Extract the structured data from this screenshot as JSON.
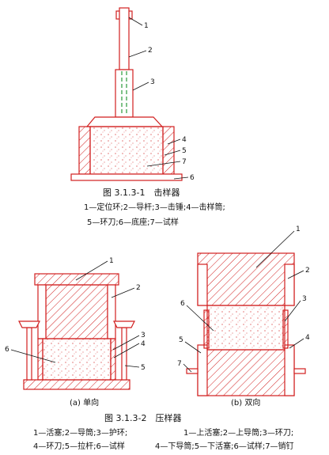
{
  "figure1": {
    "title": "图 3.1.3-1　击样器",
    "legend_line1": "1—定位环;2—导杆;3—击锤;4—击样筒;",
    "legend_line2": "5—环刀;6—底座;7—试样",
    "callouts": [
      "1",
      "2",
      "3",
      "4",
      "5",
      "7",
      "6"
    ]
  },
  "figure2": {
    "title": "图 3.1.3-2　压样器",
    "sub_a": "(a) 单向",
    "sub_b": "(b) 双向",
    "callouts_a": [
      "1",
      "2",
      "3",
      "4",
      "5",
      "6"
    ],
    "callouts_b": [
      "1",
      "2",
      "3",
      "4",
      "5",
      "6",
      "7"
    ],
    "legend_a_line1": "1—活塞;2—导筒;3—护环;",
    "legend_a_line2": "4—环刀;5—拉杆;6—试样",
    "legend_b_line1": "1—上活塞;2—上导筒;3—环刀;",
    "legend_b_line2": "4—下导筒;5—下活塞;6—试样;7—销钉"
  },
  "colors": {
    "drawing": "#d11f1f",
    "dash": "#2a9a3a",
    "ink": "#111111"
  }
}
